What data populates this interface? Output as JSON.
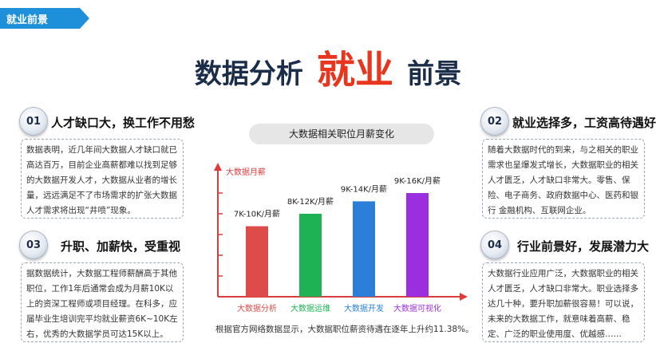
{
  "tag": {
    "label": "就业前景"
  },
  "headline": {
    "left": "数据分析",
    "mid": "就业",
    "right": "前景"
  },
  "sections": [
    {
      "num": "01",
      "title": "人才缺口大，换工作不用愁",
      "lines": [
        "数据表明，近几年间大数据人才缺口就已",
        "高达百万，目前企业高薪都难以找到足够",
        "的大数据开发人才，大数据从业者的增长",
        "量，远远满足不了市场需求的扩张大数据",
        "人才需求将出现“井喷”现象。"
      ]
    },
    {
      "num": "02",
      "title": "就业选择多，工资高待遇好",
      "lines": [
        "随着大数据时代的到来，与之相关的职业",
        "需求也呈爆发式增长，大数据职业的相关",
        "人才匮乏，人才缺口非常大。零售、保",
        "险、电子商务、政府数据中心、医药和银",
        "行 金融机构、互联网企业。"
      ]
    },
    {
      "num": "03",
      "title": "升职、加薪快，受重视",
      "lines": [
        "据数据统计，大数据工程师薪酬高于其他",
        "职位，工作1年后通常会成为月薪10K以",
        "上的资深工程师或项目经理。在科多，应",
        "届毕业生培训完平均就业薪资6K~10K左",
        "右，优秀的大数据学员可达15K以上。"
      ]
    },
    {
      "num": "04",
      "title": "行业前景好，发展潜力大",
      "lines": [
        "大数据行业应用广泛，大数据职业的相关",
        "人才匮乏，人才缺口非常大。职业选择多",
        "达几十种，要升职加薪很容易！可以说，",
        "未来的大数据工作，就意味着高薪、稳",
        "定、广泛的职业使用度、优越感……"
      ]
    }
  ],
  "chart_data": {
    "type": "bar",
    "title": "大数据相关职位月薪变化",
    "ylabel": "大数据月薪",
    "categories": [
      "大数据分析",
      "大数据运维",
      "大数据开发",
      "大数据可视化"
    ],
    "value_labels": [
      "7K-10K/月薪",
      "8K-12K/月薪",
      "9K-14K/月薪",
      "9K-16K/月薪"
    ],
    "values": [
      8.5,
      10,
      11.5,
      12.5
    ],
    "ylim": [
      0,
      15
    ],
    "colors": [
      "#dd4b4b",
      "#1fb254",
      "#2b7fd8",
      "#9b2fe0"
    ],
    "axis_color": "#dd3b3b"
  },
  "footnote": "根据官方网络数据显示，大数据职位薪资待遇在逐年上升约11.38%。"
}
